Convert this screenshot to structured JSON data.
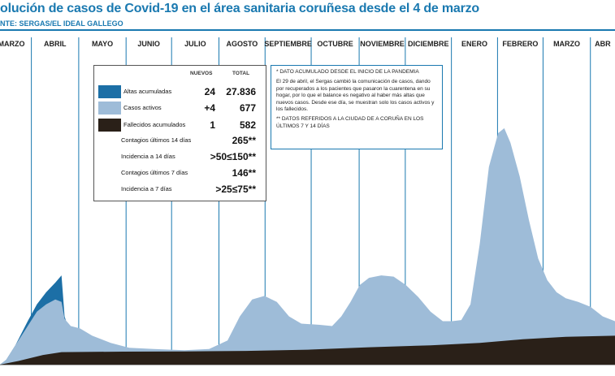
{
  "title": "olución de casos de Covid-19 en el área sanitaria coruñesa desde el 4 de marzo",
  "source": "NTE: SERGAS/EL IDEAL GALLEGO",
  "colors": {
    "accent": "#1a79b0",
    "altas": "#1c6fa6",
    "activos": "#9ebcd8",
    "fallecidos": "#2a2018",
    "gridline": "#1a79b0"
  },
  "legend": {
    "col_nuevos": "NUEVOS",
    "col_total": "TOTAL",
    "rows": [
      {
        "label": "Altas acumuladas",
        "nuevos": "24",
        "total": "27.836",
        "swatch": "#1c6fa6"
      },
      {
        "label": "Casos activos",
        "nuevos": "+4",
        "total": "677",
        "swatch": "#9ebcd8"
      },
      {
        "label": "Fallecidos acumulados",
        "nuevos": "1",
        "total": "582",
        "swatch": "#2a2018"
      }
    ],
    "extra": [
      {
        "label": "Contagios últimos 14 días",
        "value": "265**"
      },
      {
        "label": "Incidencia a 14 días",
        "value": ">50≤150**"
      },
      {
        "label": "Contagios últimos 7 días",
        "value": "146**"
      },
      {
        "label": "Incidencia a 7 días",
        "value": ">25≤75**"
      }
    ]
  },
  "notes": {
    "note1": "* DATO ACUMULADO DESDE EL INICIO DE LA PANDEMIA",
    "note2": "El 29 de abril, el Sergas cambió la comunicación de casos, dando por recuperados a los pacientes que pasaron la cuarentena en su hogar, por lo que el balance es negativo al haber más altas que nuevos casos. Desde ese día, se muestran solo los casos activos y los fallecidos.",
    "note3": "** DATOS REFERIDOS A LA CIUDAD DE A CORUÑA EN LOS ÚLTIMOS 7 Y 14 DÍAS"
  },
  "chart_data": {
    "type": "area",
    "x_axis_months": [
      "MARZO",
      "ABRIL",
      "MAYO",
      "JUNIO",
      "JULIO",
      "AGOSTO",
      "SEPTIEMBRE",
      "OCTUBRE",
      "NOVIEMBRE",
      "DICIEMBRE",
      "ENERO",
      "FEBRERO",
      "MARZO",
      "ABR"
    ],
    "month_fraction": [
      0,
      0.051,
      0.128,
      0.205,
      0.279,
      0.356,
      0.431,
      0.506,
      0.584,
      0.659,
      0.734,
      0.809,
      0.883,
      0.96,
      1.0
    ],
    "y_relative_max": 100,
    "series": [
      {
        "name": "Fallecidos acumulados",
        "points": [
          [
            0,
            0
          ],
          [
            0.03,
            1.5
          ],
          [
            0.07,
            4
          ],
          [
            0.1,
            5.2
          ],
          [
            0.2,
            5.4
          ],
          [
            0.3,
            5.5
          ],
          [
            0.4,
            5.7
          ],
          [
            0.5,
            6.2
          ],
          [
            0.6,
            7.2
          ],
          [
            0.7,
            8
          ],
          [
            0.78,
            9
          ],
          [
            0.85,
            10.5
          ],
          [
            0.92,
            11.5
          ],
          [
            1.0,
            12
          ]
        ]
      },
      {
        "name": "Casos activos",
        "points": [
          [
            0,
            0
          ],
          [
            0.01,
            2
          ],
          [
            0.025,
            8
          ],
          [
            0.045,
            16
          ],
          [
            0.06,
            22
          ],
          [
            0.075,
            25
          ],
          [
            0.09,
            27
          ],
          [
            0.1,
            26
          ],
          [
            0.105,
            19
          ],
          [
            0.115,
            16
          ],
          [
            0.13,
            15
          ],
          [
            0.15,
            12
          ],
          [
            0.18,
            9
          ],
          [
            0.21,
            7
          ],
          [
            0.25,
            6.5
          ],
          [
            0.3,
            6
          ],
          [
            0.34,
            6.5
          ],
          [
            0.37,
            10
          ],
          [
            0.39,
            20
          ],
          [
            0.41,
            27
          ],
          [
            0.43,
            28.5
          ],
          [
            0.45,
            26
          ],
          [
            0.47,
            20
          ],
          [
            0.49,
            17
          ],
          [
            0.52,
            16.5
          ],
          [
            0.54,
            16
          ],
          [
            0.555,
            20
          ],
          [
            0.57,
            26
          ],
          [
            0.585,
            33
          ],
          [
            0.6,
            36
          ],
          [
            0.62,
            37
          ],
          [
            0.64,
            36.5
          ],
          [
            0.66,
            33
          ],
          [
            0.68,
            28
          ],
          [
            0.7,
            22
          ],
          [
            0.72,
            18
          ],
          [
            0.735,
            18
          ],
          [
            0.75,
            18.5
          ],
          [
            0.765,
            25
          ],
          [
            0.78,
            50
          ],
          [
            0.795,
            82
          ],
          [
            0.81,
            96
          ],
          [
            0.82,
            98
          ],
          [
            0.83,
            92
          ],
          [
            0.845,
            78
          ],
          [
            0.86,
            60
          ],
          [
            0.875,
            44
          ],
          [
            0.89,
            35
          ],
          [
            0.905,
            30
          ],
          [
            0.92,
            27.5
          ],
          [
            0.94,
            26
          ],
          [
            0.96,
            24
          ],
          [
            0.98,
            20
          ],
          [
            1.0,
            18
          ]
        ]
      },
      {
        "name": "Altas acumuladas",
        "points": [
          [
            0,
            0
          ],
          [
            0.01,
            2
          ],
          [
            0.025,
            8
          ],
          [
            0.045,
            18
          ],
          [
            0.06,
            25
          ],
          [
            0.075,
            30
          ],
          [
            0.09,
            34
          ],
          [
            0.1,
            37
          ],
          [
            0.105,
            20
          ],
          [
            0.11,
            16
          ]
        ]
      }
    ]
  }
}
